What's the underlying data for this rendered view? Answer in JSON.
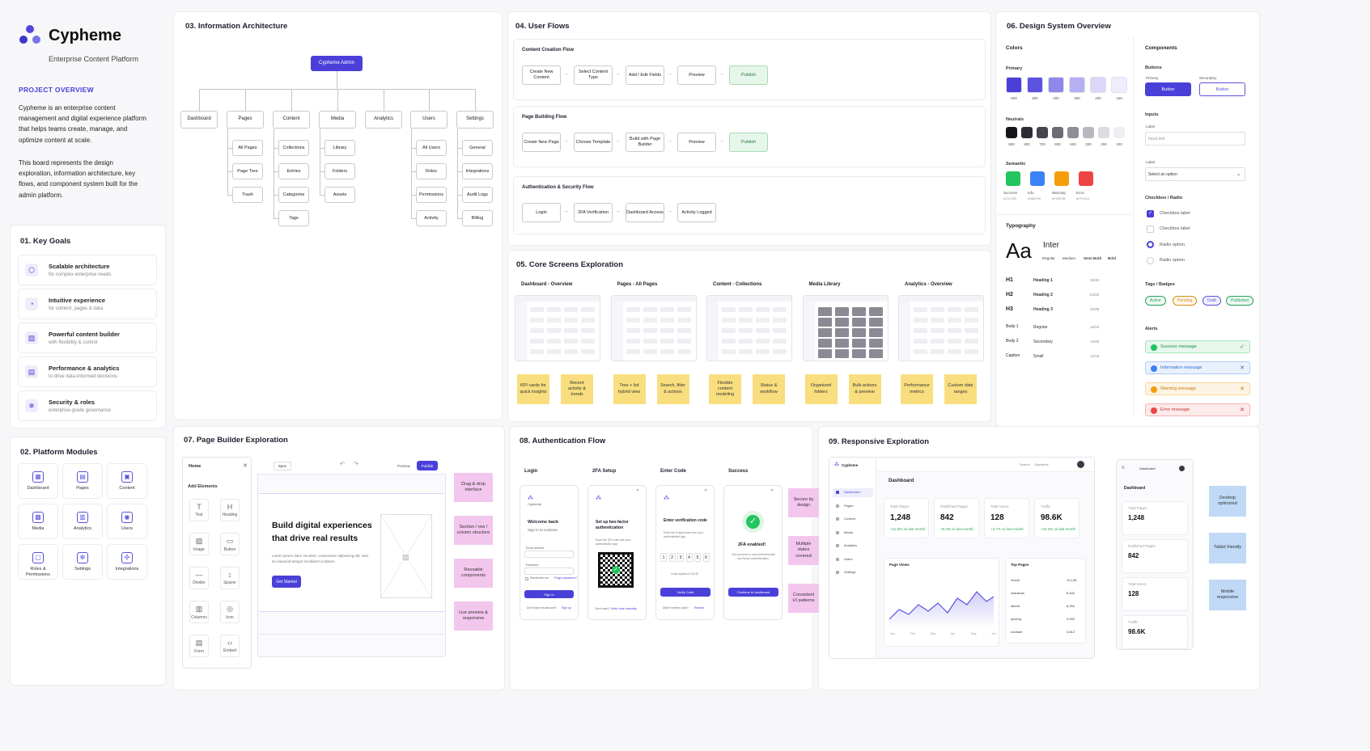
{
  "brand": {
    "name": "Cypheme",
    "subtitle": "Enterprise Content Platform",
    "accent": "#4a40d9"
  },
  "overview": {
    "heading": "PROJECT OVERVIEW",
    "p1": "Cypheme is an enterprise content management and digital experience platform that helps teams create, manage, and optimize content at scale.",
    "p2": "This board represents the design exploration, information architecture, key flows, and component system built for the admin platform."
  },
  "goals": {
    "title": "01.  Key Goals",
    "items": [
      {
        "icon": "cube-icon",
        "title": "Scalable architecture",
        "sub": "for complex enterprise needs"
      },
      {
        "icon": "cursor-icon",
        "title": "Intuitive experience",
        "sub": "for content, pages & data"
      },
      {
        "icon": "edit-icon",
        "title": "Powerful content builder",
        "sub": "with flexibility & control"
      },
      {
        "icon": "chart-icon",
        "title": "Performance & analytics",
        "sub": "to drive data-informed decisions"
      },
      {
        "icon": "users-icon",
        "title": "Security & roles",
        "sub": "enterprise-grade governance"
      }
    ]
  },
  "modules": {
    "title": "02.  Platform Modules",
    "items": [
      {
        "icon": "dashboard-icon",
        "label": "Dashboard",
        "glyph": "▦"
      },
      {
        "icon": "pages-icon",
        "label": "Pages",
        "glyph": "▤"
      },
      {
        "icon": "content-icon",
        "label": "Content",
        "glyph": "▣"
      },
      {
        "icon": "media-icon",
        "label": "Media",
        "glyph": "▩"
      },
      {
        "icon": "analytics-icon",
        "label": "Analytics",
        "glyph": "▥"
      },
      {
        "icon": "users-icon",
        "label": "Users",
        "glyph": "◉"
      },
      {
        "icon": "lock-icon",
        "label": "Roles &\nPermissions",
        "glyph": "▢"
      },
      {
        "icon": "gear-icon",
        "label": "Settings",
        "glyph": "✻"
      },
      {
        "icon": "integrations-icon",
        "label": "Integrations",
        "glyph": "✣"
      }
    ]
  },
  "ia": {
    "title": "03.  Information Architecture",
    "root": "Cypheme Admin",
    "branches": [
      {
        "label": "Dashboard",
        "children": []
      },
      {
        "label": "Pages",
        "children": [
          "All Pages",
          "Page Tree",
          "Trash"
        ]
      },
      {
        "label": "Content",
        "children": [
          "Collections",
          "Entries",
          "Categories",
          "Tags"
        ]
      },
      {
        "label": "Media",
        "children": [
          "Library",
          "Folders",
          "Assets"
        ]
      },
      {
        "label": "Analytics",
        "children": []
      },
      {
        "label": "Users",
        "children": [
          "All Users",
          "Roles",
          "Permissions",
          "Activity"
        ]
      },
      {
        "label": "Settings",
        "children": [
          "General",
          "Integrations",
          "Audit Logs",
          "Billing"
        ]
      }
    ]
  },
  "flows": {
    "title": "04.  User Flows",
    "items": [
      {
        "name": "Content Creation Flow",
        "steps": [
          "Create New Content",
          "Select Content Type",
          "Add / Edit Fields",
          "Preview",
          "Publish"
        ]
      },
      {
        "name": "Page Building Flow",
        "steps": [
          "Create New Page",
          "Choose Template",
          "Build with Page Builder",
          "Preview",
          "Publish"
        ]
      },
      {
        "name": "Authentication & Security Flow",
        "steps": [
          "Login",
          "2FA Verification",
          "Dashboard Access",
          "Activity Logged"
        ]
      }
    ]
  },
  "screens": {
    "title": "05.  Core Screens Exploration",
    "items": [
      {
        "name": "Dashboard - Overview",
        "notes": [
          "KPI cards for quick insights",
          "Recent activity & trends"
        ]
      },
      {
        "name": "Pages - All Pages",
        "notes": [
          "Tree + list hybrid view",
          "Search, filter & actions"
        ]
      },
      {
        "name": "Content - Collections",
        "notes": [
          "Flexible content modeling",
          "Status & workflow"
        ]
      },
      {
        "name": "Media Library",
        "notes": [
          "Organized folders",
          "Bulk actions & preview"
        ]
      },
      {
        "name": "Analytics - Overview",
        "notes": [
          "Performance metrics",
          "Custom date ranges"
        ]
      }
    ]
  },
  "ds": {
    "title": "06.  Design System Overview",
    "colors": "Colors",
    "primary": {
      "label": "Primary",
      "swatches": [
        {
          "c": "#4a40d9",
          "l": "600"
        },
        {
          "c": "#5b52e0",
          "l": "500"
        },
        {
          "c": "#8f88ea",
          "l": "400"
        },
        {
          "c": "#b5b0f1",
          "l": "300"
        },
        {
          "c": "#dad7f8",
          "l": "200"
        },
        {
          "c": "#eeedfc",
          "l": "100"
        }
      ]
    },
    "neutrals": {
      "label": "Neutrals",
      "swatches": [
        {
          "c": "#15161c",
          "l": "900"
        },
        {
          "c": "#2a2b33",
          "l": "800"
        },
        {
          "c": "#44454f",
          "l": "700"
        },
        {
          "c": "#6a6b75",
          "l": "600"
        },
        {
          "c": "#8d8e97",
          "l": "600"
        },
        {
          "c": "#b7b8c0",
          "l": "300"
        },
        {
          "c": "#dcdde2",
          "l": "200"
        },
        {
          "c": "#eeeff2",
          "l": "100"
        }
      ]
    },
    "semantic": {
      "label": "Semantic",
      "swatches": [
        {
          "c": "#22c55e",
          "l": "Success",
          "h": "#22C55E"
        },
        {
          "c": "#3b82f6",
          "l": "Info",
          "h": "#3B82F6"
        },
        {
          "c": "#f59e0b",
          "l": "Warning",
          "h": "#F59E0B"
        },
        {
          "c": "#ef4444",
          "l": "Error",
          "h": "#EF4444"
        }
      ]
    },
    "typography": "Typography",
    "type_sample": "Aa",
    "font_name": "Inter",
    "weights": [
      "Regular",
      "Medium",
      "Semi Bold",
      "Bold"
    ],
    "scale": [
      {
        "tag": "H1",
        "name": "Heading 1",
        "size": "32/40"
      },
      {
        "tag": "H2",
        "name": "Heading 2",
        "size": "24/32"
      },
      {
        "tag": "H3",
        "name": "Heading 3",
        "size": "20/28"
      },
      {
        "tag": "Body 1",
        "name": "Regular",
        "size": "16/24"
      },
      {
        "tag": "Body 2",
        "name": "Secondary",
        "size": "14/20"
      },
      {
        "tag": "Caption",
        "name": "Small",
        "size": "12/16"
      }
    ],
    "components": "Components",
    "buttons": "Buttons",
    "btn_primary_label": "Primary",
    "btn_secondary_label": "Secondary",
    "btn_text": "Button",
    "inputs": "Inputs",
    "input_label": "Label",
    "input_placeholder": "Input text",
    "select_label": "Label",
    "select_placeholder": "Select an option",
    "checkbox_radio": "Checkbox / Radio",
    "checkbox_label": "Checkbox label",
    "radio_label": "Radio option",
    "tags_title": "Tags / Badges",
    "tags": [
      {
        "l": "Active",
        "c": "#22a55b"
      },
      {
        "l": "Pending",
        "c": "#e08a12"
      },
      {
        "l": "Draft",
        "c": "#5b52e0"
      },
      {
        "l": "Published",
        "c": "#22a55b"
      }
    ],
    "alerts_title": "Alerts",
    "alerts": [
      {
        "l": "Success message",
        "bg": "#e7f7ec",
        "fg": "#1f8a44",
        "d": "#22c55e",
        "x": "✓"
      },
      {
        "l": "Information message",
        "bg": "#eaf1fd",
        "fg": "#2f6fd4",
        "d": "#3b82f6",
        "x": "✕"
      },
      {
        "l": "Warning message",
        "bg": "#fdf3e3",
        "fg": "#c77c0a",
        "d": "#f59e0b",
        "x": "✕"
      },
      {
        "l": "Error message",
        "bg": "#fdeaea",
        "fg": "#c83232",
        "d": "#ef4444",
        "x": "✕"
      }
    ]
  },
  "pagebuilder": {
    "title": "07.  Page Builder Exploration",
    "panel_title": "Home",
    "add_elements": "Add Elements",
    "elements": [
      {
        "l": "Text",
        "g": "T"
      },
      {
        "l": "Heading",
        "g": "H"
      },
      {
        "l": "Image",
        "g": "▨"
      },
      {
        "l": "Button",
        "g": "▭"
      },
      {
        "l": "Divider",
        "g": "—"
      },
      {
        "l": "Spacer",
        "g": "↕"
      },
      {
        "l": "Columns",
        "g": "▥"
      },
      {
        "l": "Icon",
        "g": "◎"
      },
      {
        "l": "Form",
        "g": "▤"
      },
      {
        "l": "Embed",
        "g": "‹›"
      }
    ],
    "toolbar_device": "Sync",
    "preview": "Preview",
    "publish": "Publish",
    "hero_title": "Build digital experiences that drive real results",
    "hero_text": "Lorem ipsum dolor sit amet, consectetur adipiscing elit. Sed do eiusmod tempor incididunt ut labore.",
    "hero_cta": "Get Started",
    "notes": [
      "Drag & drop interface",
      "Section / row / column structure",
      "Reusable components",
      "Live preview & responsive"
    ]
  },
  "auth": {
    "title": "08.  Authentication Flow",
    "screens": [
      "Login",
      "2FA Setup",
      "Enter Code",
      "Success"
    ],
    "login_title": "Welcome back",
    "login_sub": "Sign in to continue",
    "email_label": "Email address",
    "password_label": "Password",
    "remember": "Remember me",
    "forgot": "Forgot password?",
    "signin": "Sign in",
    "noacc": "Don't have an account?",
    "signup": "Sign up",
    "setup_title": "Set up two-factor authentication",
    "setup_sub": "Scan the QR code with your authenticator app",
    "cant_scan": "Can't scan?",
    "enter_manually": "Enter code manually",
    "code_title": "Enter verification code",
    "code_sub": "Enter the 6-digit code from your authenticator app",
    "digits": [
      "1",
      "2",
      "3",
      "4",
      "5",
      "6"
    ],
    "code_expires": "Code expires in 00:30",
    "verify": "Verify Code",
    "no_code": "Didn't receive code?",
    "resend": "Resend",
    "success_title": "2FA enabled!",
    "success_sub": "Your account is now protected with two-factor authentication.",
    "continue": "Continue to dashboard",
    "logo_text": "Cypheme",
    "notes": [
      "Secure by design",
      "Multiple states covered",
      "Consistent UI patterns"
    ]
  },
  "responsive": {
    "title": "09.  Responsive Exploration",
    "nav": [
      "Dashboard",
      "Pages",
      "Content",
      "Media",
      "Analytics",
      "Users",
      "Settings"
    ],
    "page_title": "Dashboard",
    "topbar_search": "Search",
    "topbar_range": "Day/week",
    "stats": [
      {
        "l": "Total Pages",
        "v": "1,248",
        "d": "+12.5% vs last month"
      },
      {
        "l": "Published Pages",
        "v": "842",
        "d": "+8.2% vs last month"
      },
      {
        "l": "Total Users",
        "v": "128",
        "d": "+4.7% vs last month"
      },
      {
        "l": "Traffic",
        "v": "98.6K",
        "d": "+15.3% vs last month"
      }
    ],
    "page_views": "Page Views",
    "top_pages": "Top Pages",
    "top_rows": [
      {
        "p": "/home",
        "v": "10,128"
      },
      {
        "p": "/solutions",
        "v": "8,432"
      },
      {
        "p": "/about",
        "v": "6,254"
      },
      {
        "p": "/pricing",
        "v": "4,932"
      },
      {
        "p": "/contact",
        "v": "3,812"
      }
    ],
    "chart_x": [
      "Jan",
      "Feb",
      "Mar",
      "Apr",
      "May",
      "Jun"
    ],
    "notes": [
      "Desktop optimized",
      "Tablet friendly",
      "Mobile responsive"
    ]
  }
}
